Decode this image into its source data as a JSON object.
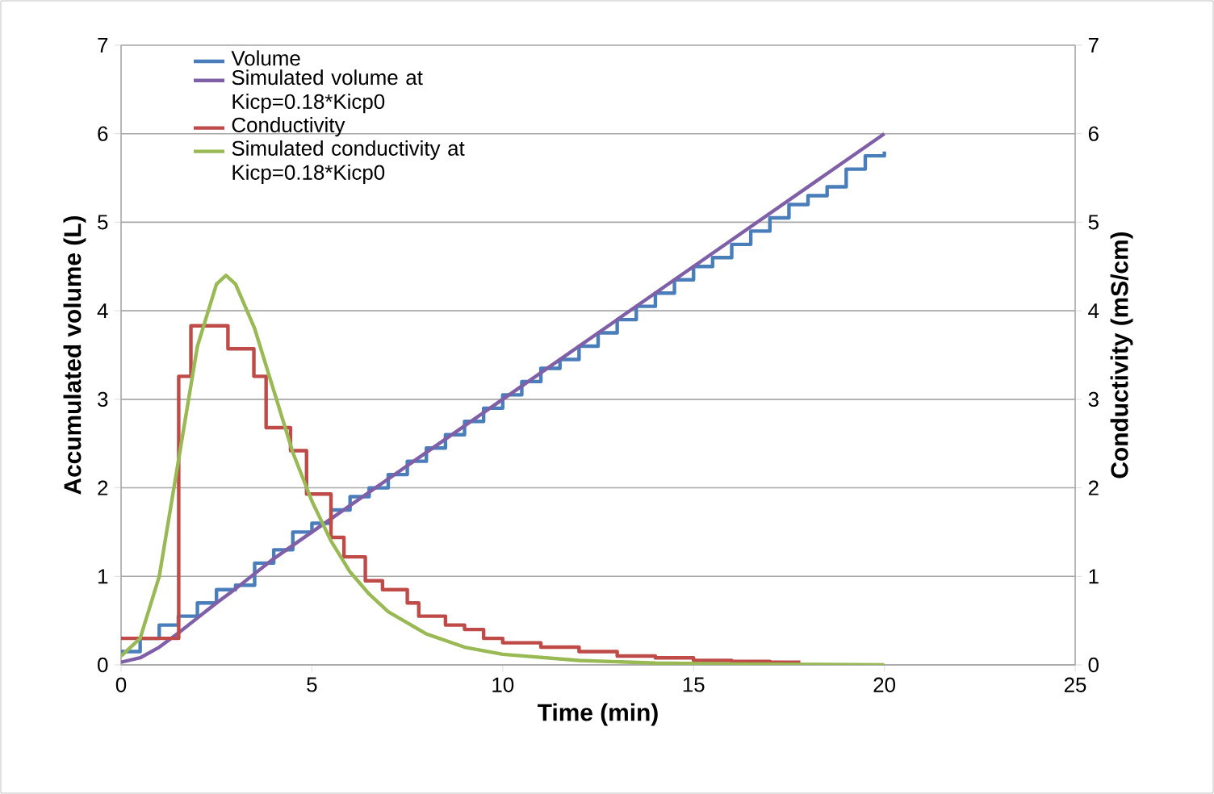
{
  "chart_data": {
    "type": "line",
    "xlabel": "Time (min)",
    "ylabel": "Accumulated volume (L)",
    "y2label": "Conductivity (mS/cm)",
    "xlim": [
      0,
      25
    ],
    "xticks": [
      0,
      5,
      10,
      15,
      20,
      25
    ],
    "ylim": [
      0,
      7
    ],
    "yticks": [
      0,
      1,
      2,
      3,
      4,
      5,
      6,
      7
    ],
    "y2lim": [
      0,
      7
    ],
    "y2ticks": [
      0,
      1,
      2,
      3,
      4,
      5,
      6,
      7
    ],
    "grid": "y",
    "legend": "top left",
    "marker": "none",
    "line_style": "solid",
    "series": [
      {
        "name": "Volume",
        "type": "step",
        "color": "#4a7ebb",
        "x": [
          0,
          0.5,
          1,
          1.5,
          2,
          2.5,
          3,
          3.5,
          4,
          4.5,
          5,
          5.5,
          6,
          6.5,
          7,
          7.5,
          8,
          8.5,
          9,
          9.5,
          10,
          10.5,
          11,
          11.5,
          12,
          12.5,
          13,
          13.5,
          14,
          14.5,
          15,
          15.5,
          16,
          16.5,
          17,
          17.5,
          18,
          18.5,
          19,
          19.5,
          20
        ],
        "values": [
          0.15,
          0.3,
          0.45,
          0.55,
          0.7,
          0.85,
          0.9,
          1.15,
          1.3,
          1.5,
          1.6,
          1.75,
          1.9,
          2.0,
          2.15,
          2.3,
          2.45,
          2.6,
          2.75,
          2.9,
          3.05,
          3.2,
          3.35,
          3.45,
          3.6,
          3.75,
          3.9,
          4.05,
          4.2,
          4.35,
          4.5,
          4.6,
          4.75,
          4.9,
          5.05,
          5.2,
          5.3,
          5.4,
          5.6,
          5.75,
          5.8
        ]
      },
      {
        "name": "Simulated volume at Kicp=0.18*Kicp0",
        "color": "#7f60a8",
        "x": [
          0,
          0.5,
          1,
          1.5,
          2,
          2.5,
          3,
          4,
          5,
          10,
          15,
          20
        ],
        "values": [
          0.03,
          0.08,
          0.2,
          0.36,
          0.53,
          0.7,
          0.86,
          1.2,
          1.5,
          3.0,
          4.5,
          6.0
        ]
      },
      {
        "name": "Conductivity",
        "type": "step",
        "axis": "y2",
        "color": "#be4b48",
        "x": [
          0,
          1.51,
          1.83,
          2.8,
          3.48,
          3.8,
          4.44,
          4.86,
          5.5,
          5.84,
          6.4,
          6.85,
          7.5,
          7.8,
          8.5,
          9,
          9.5,
          10,
          11,
          12,
          13,
          14,
          15,
          16,
          17,
          17.8
        ],
        "values": [
          0.3,
          3.26,
          3.83,
          3.57,
          3.26,
          2.68,
          2.42,
          1.93,
          1.44,
          1.22,
          0.95,
          0.85,
          0.7,
          0.55,
          0.45,
          0.4,
          0.3,
          0.25,
          0.2,
          0.15,
          0.1,
          0.08,
          0.05,
          0.04,
          0.03,
          0.03
        ]
      },
      {
        "name": "Simulated conductivity at Kicp=0.18*Kicp0",
        "axis": "y2",
        "color": "#98b954",
        "x": [
          0,
          0.5,
          1,
          1.5,
          2,
          2.5,
          2.75,
          3,
          3.5,
          4,
          4.5,
          5,
          5.5,
          6,
          6.5,
          7,
          8,
          9,
          10,
          12,
          14,
          16,
          20
        ],
        "values": [
          0.1,
          0.3,
          1.0,
          2.3,
          3.6,
          4.3,
          4.4,
          4.3,
          3.8,
          3.1,
          2.4,
          1.85,
          1.4,
          1.05,
          0.8,
          0.6,
          0.35,
          0.2,
          0.12,
          0.05,
          0.02,
          0.01,
          0.0
        ]
      }
    ]
  }
}
